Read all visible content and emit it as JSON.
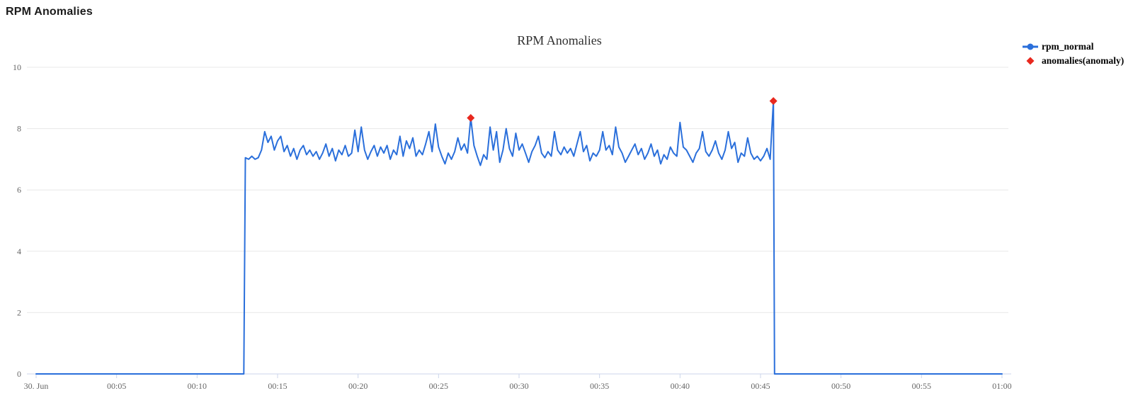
{
  "header": {
    "title": "RPM Anomalies"
  },
  "chart_data": {
    "type": "line",
    "title": "RPM Anomalies",
    "xlabel": "",
    "ylabel": "",
    "ylim": [
      0,
      10
    ],
    "y_ticks": [
      0,
      2,
      4,
      6,
      8,
      10
    ],
    "x_ticks": [
      {
        "t": 0,
        "label": "30. Jun"
      },
      {
        "t": 5,
        "label": "00:05"
      },
      {
        "t": 10,
        "label": "00:10"
      },
      {
        "t": 15,
        "label": "00:15"
      },
      {
        "t": 20,
        "label": "00:20"
      },
      {
        "t": 25,
        "label": "00:25"
      },
      {
        "t": 30,
        "label": "00:30"
      },
      {
        "t": 35,
        "label": "00:35"
      },
      {
        "t": 40,
        "label": "00:40"
      },
      {
        "t": 45,
        "label": "00:45"
      },
      {
        "t": 50,
        "label": "00:50"
      },
      {
        "t": 55,
        "label": "00:55"
      },
      {
        "t": 60,
        "label": "01:00"
      }
    ],
    "colors": {
      "line": "#2a6fdb",
      "anomaly": "#e8281e",
      "grid": "#e8e8e8",
      "axis": "#ccd6eb",
      "label": "#666666"
    },
    "legend_position": "top-right",
    "grid": true,
    "series": [
      {
        "name": "rpm_normal",
        "color": "#2a6fdb",
        "points": [
          [
            0,
            0
          ],
          [
            12.9,
            0
          ],
          [
            13.0,
            7.05
          ],
          [
            13.2,
            7.0
          ],
          [
            13.4,
            7.1
          ],
          [
            13.6,
            7.0
          ],
          [
            13.8,
            7.05
          ],
          [
            14.0,
            7.3
          ],
          [
            14.2,
            7.9
          ],
          [
            14.4,
            7.55
          ],
          [
            14.6,
            7.75
          ],
          [
            14.8,
            7.3
          ],
          [
            15.0,
            7.6
          ],
          [
            15.2,
            7.75
          ],
          [
            15.4,
            7.25
          ],
          [
            15.6,
            7.45
          ],
          [
            15.8,
            7.1
          ],
          [
            16.0,
            7.35
          ],
          [
            16.2,
            7.0
          ],
          [
            16.4,
            7.3
          ],
          [
            16.6,
            7.45
          ],
          [
            16.8,
            7.15
          ],
          [
            17.0,
            7.3
          ],
          [
            17.2,
            7.1
          ],
          [
            17.4,
            7.25
          ],
          [
            17.6,
            7.0
          ],
          [
            17.8,
            7.2
          ],
          [
            18.0,
            7.5
          ],
          [
            18.2,
            7.1
          ],
          [
            18.4,
            7.35
          ],
          [
            18.6,
            6.95
          ],
          [
            18.8,
            7.3
          ],
          [
            19.0,
            7.15
          ],
          [
            19.2,
            7.45
          ],
          [
            19.4,
            7.1
          ],
          [
            19.6,
            7.2
          ],
          [
            19.8,
            7.95
          ],
          [
            20.0,
            7.25
          ],
          [
            20.2,
            8.05
          ],
          [
            20.4,
            7.3
          ],
          [
            20.6,
            7.0
          ],
          [
            20.8,
            7.25
          ],
          [
            21.0,
            7.45
          ],
          [
            21.2,
            7.1
          ],
          [
            21.4,
            7.4
          ],
          [
            21.6,
            7.2
          ],
          [
            21.8,
            7.45
          ],
          [
            22.0,
            7.0
          ],
          [
            22.2,
            7.3
          ],
          [
            22.4,
            7.15
          ],
          [
            22.6,
            7.75
          ],
          [
            22.8,
            7.1
          ],
          [
            23.0,
            7.6
          ],
          [
            23.2,
            7.35
          ],
          [
            23.4,
            7.7
          ],
          [
            23.6,
            7.1
          ],
          [
            23.8,
            7.3
          ],
          [
            24.0,
            7.15
          ],
          [
            24.2,
            7.5
          ],
          [
            24.4,
            7.9
          ],
          [
            24.6,
            7.25
          ],
          [
            24.8,
            8.15
          ],
          [
            25.0,
            7.4
          ],
          [
            25.2,
            7.1
          ],
          [
            25.4,
            6.85
          ],
          [
            25.6,
            7.2
          ],
          [
            25.8,
            7.0
          ],
          [
            26.0,
            7.25
          ],
          [
            26.2,
            7.7
          ],
          [
            26.4,
            7.3
          ],
          [
            26.6,
            7.5
          ],
          [
            26.8,
            7.2
          ],
          [
            27.0,
            8.35
          ],
          [
            27.2,
            7.45
          ],
          [
            27.4,
            7.1
          ],
          [
            27.6,
            6.8
          ],
          [
            27.8,
            7.15
          ],
          [
            28.0,
            7.0
          ],
          [
            28.2,
            8.05
          ],
          [
            28.4,
            7.3
          ],
          [
            28.6,
            7.9
          ],
          [
            28.8,
            6.9
          ],
          [
            29.0,
            7.3
          ],
          [
            29.2,
            8.0
          ],
          [
            29.4,
            7.35
          ],
          [
            29.6,
            7.1
          ],
          [
            29.8,
            7.85
          ],
          [
            30.0,
            7.3
          ],
          [
            30.2,
            7.5
          ],
          [
            30.4,
            7.2
          ],
          [
            30.6,
            6.9
          ],
          [
            30.8,
            7.25
          ],
          [
            31.0,
            7.45
          ],
          [
            31.2,
            7.75
          ],
          [
            31.4,
            7.2
          ],
          [
            31.6,
            7.05
          ],
          [
            31.8,
            7.25
          ],
          [
            32.0,
            7.1
          ],
          [
            32.2,
            7.9
          ],
          [
            32.4,
            7.3
          ],
          [
            32.6,
            7.15
          ],
          [
            32.8,
            7.4
          ],
          [
            33.0,
            7.2
          ],
          [
            33.2,
            7.35
          ],
          [
            33.4,
            7.1
          ],
          [
            33.6,
            7.5
          ],
          [
            33.8,
            7.9
          ],
          [
            34.0,
            7.25
          ],
          [
            34.2,
            7.45
          ],
          [
            34.4,
            6.95
          ],
          [
            34.6,
            7.2
          ],
          [
            34.8,
            7.1
          ],
          [
            35.0,
            7.3
          ],
          [
            35.2,
            7.9
          ],
          [
            35.4,
            7.3
          ],
          [
            35.6,
            7.45
          ],
          [
            35.8,
            7.15
          ],
          [
            36.0,
            8.05
          ],
          [
            36.2,
            7.4
          ],
          [
            36.4,
            7.2
          ],
          [
            36.6,
            6.9
          ],
          [
            36.8,
            7.1
          ],
          [
            37.0,
            7.3
          ],
          [
            37.2,
            7.5
          ],
          [
            37.4,
            7.15
          ],
          [
            37.6,
            7.35
          ],
          [
            37.8,
            7.0
          ],
          [
            38.0,
            7.2
          ],
          [
            38.2,
            7.5
          ],
          [
            38.4,
            7.1
          ],
          [
            38.6,
            7.3
          ],
          [
            38.8,
            6.85
          ],
          [
            39.0,
            7.15
          ],
          [
            39.2,
            7.0
          ],
          [
            39.4,
            7.4
          ],
          [
            39.6,
            7.2
          ],
          [
            39.8,
            7.1
          ],
          [
            40.0,
            8.2
          ],
          [
            40.2,
            7.4
          ],
          [
            40.4,
            7.3
          ],
          [
            40.6,
            7.1
          ],
          [
            40.8,
            6.9
          ],
          [
            41.0,
            7.2
          ],
          [
            41.2,
            7.35
          ],
          [
            41.4,
            7.9
          ],
          [
            41.6,
            7.25
          ],
          [
            41.8,
            7.1
          ],
          [
            42.0,
            7.3
          ],
          [
            42.2,
            7.6
          ],
          [
            42.4,
            7.2
          ],
          [
            42.6,
            7.0
          ],
          [
            42.8,
            7.3
          ],
          [
            43.0,
            7.9
          ],
          [
            43.2,
            7.35
          ],
          [
            43.4,
            7.55
          ],
          [
            43.6,
            6.9
          ],
          [
            43.8,
            7.2
          ],
          [
            44.0,
            7.1
          ],
          [
            44.2,
            7.7
          ],
          [
            44.4,
            7.2
          ],
          [
            44.6,
            7.0
          ],
          [
            44.8,
            7.1
          ],
          [
            45.0,
            6.95
          ],
          [
            45.2,
            7.1
          ],
          [
            45.4,
            7.35
          ],
          [
            45.6,
            7.0
          ],
          [
            45.8,
            8.9
          ],
          [
            45.87,
            0
          ],
          [
            60,
            0
          ]
        ]
      }
    ],
    "anomalies": {
      "name": "anomalies(anomaly)",
      "color": "#e8281e",
      "marker": "diamond",
      "points": [
        [
          27.0,
          8.35
        ],
        [
          45.8,
          8.9
        ]
      ]
    }
  }
}
